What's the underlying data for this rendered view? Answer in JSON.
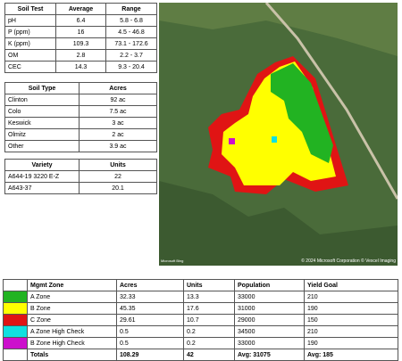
{
  "soil_test": {
    "headers": [
      "Soil Test",
      "Average",
      "Range"
    ],
    "rows": [
      [
        "pH",
        "6.4",
        "5.8 - 6.8"
      ],
      [
        "P (ppm)",
        "16",
        "4.5 - 46.8"
      ],
      [
        "K (ppm)",
        "109.3",
        "73.1 - 172.6"
      ],
      [
        "OM",
        "2.8",
        "2.2 - 3.7"
      ],
      [
        "CEC",
        "14.3",
        "9.3 - 20.4"
      ]
    ]
  },
  "soil_type": {
    "headers": [
      "Soil Type",
      "Acres"
    ],
    "rows": [
      [
        "Clinton",
        "92 ac"
      ],
      [
        "Colo",
        "7.5 ac"
      ],
      [
        "Keswick",
        "3 ac"
      ],
      [
        "Olmitz",
        "2 ac"
      ],
      [
        "Other",
        "3.9 ac"
      ]
    ]
  },
  "variety": {
    "headers": [
      "Variety",
      "Units"
    ],
    "rows": [
      [
        "A644-19 3220 E-Z",
        "22"
      ],
      [
        "A643-37",
        "20.1"
      ]
    ]
  },
  "map": {
    "attribution": "© 2024 Microsoft Corporation © Vexcel Imaging",
    "logo": "Microsoft Bing"
  },
  "zones": {
    "headers": [
      "Mgmt Zone",
      "Acres",
      "Units",
      "Population",
      "Yield Goal"
    ],
    "rows": [
      {
        "color": "#22b322",
        "cells": [
          "A Zone",
          "32.33",
          "13.3",
          "33000",
          "210"
        ]
      },
      {
        "color": "#ffff00",
        "cells": [
          "B Zone",
          "45.35",
          "17.6",
          "31000",
          "190"
        ]
      },
      {
        "color": "#e01414",
        "cells": [
          "C Zone",
          "29.61",
          "10.7",
          "29000",
          "150"
        ]
      },
      {
        "color": "#10e0e0",
        "cells": [
          "A Zone High Check",
          "0.5",
          "0.2",
          "34500",
          "210"
        ]
      },
      {
        "color": "#cc10cc",
        "cells": [
          "B Zone High Check",
          "0.5",
          "0.2",
          "33000",
          "190"
        ]
      }
    ],
    "totals": [
      "Totals",
      "108.29",
      "42",
      "Avg: 31075",
      "Avg: 185"
    ]
  }
}
